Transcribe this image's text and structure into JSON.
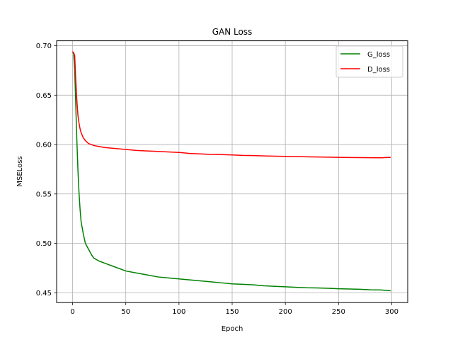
{
  "chart_data": {
    "type": "line",
    "title": "GAN Loss",
    "xlabel": "Epoch",
    "ylabel": "MSELoss",
    "xlim": [
      -15,
      315
    ],
    "ylim": [
      0.44,
      0.705
    ],
    "xticks": [
      0,
      50,
      100,
      150,
      200,
      250,
      300
    ],
    "yticks": [
      0.45,
      0.5,
      0.55,
      0.6,
      0.65,
      0.7
    ],
    "grid": true,
    "legend_position": "top-right",
    "series": [
      {
        "name": "G_loss",
        "color": "#008000",
        "points": [
          [
            0,
            0.694
          ],
          [
            1,
            0.692
          ],
          [
            2,
            0.675
          ],
          [
            3,
            0.64
          ],
          [
            4,
            0.605
          ],
          [
            5,
            0.575
          ],
          [
            6,
            0.552
          ],
          [
            7,
            0.535
          ],
          [
            8,
            0.522
          ],
          [
            10,
            0.51
          ],
          [
            12,
            0.5
          ],
          [
            15,
            0.494
          ],
          [
            18,
            0.488
          ],
          [
            20,
            0.485
          ],
          [
            25,
            0.482
          ],
          [
            30,
            0.48
          ],
          [
            40,
            0.476
          ],
          [
            50,
            0.472
          ],
          [
            60,
            0.47
          ],
          [
            70,
            0.468
          ],
          [
            80,
            0.466
          ],
          [
            90,
            0.465
          ],
          [
            100,
            0.464
          ],
          [
            110,
            0.463
          ],
          [
            120,
            0.462
          ],
          [
            130,
            0.461
          ],
          [
            140,
            0.46
          ],
          [
            150,
            0.459
          ],
          [
            160,
            0.4585
          ],
          [
            170,
            0.458
          ],
          [
            180,
            0.457
          ],
          [
            190,
            0.4565
          ],
          [
            200,
            0.456
          ],
          [
            210,
            0.4555
          ],
          [
            220,
            0.455
          ],
          [
            230,
            0.4548
          ],
          [
            240,
            0.4545
          ],
          [
            250,
            0.454
          ],
          [
            260,
            0.4538
          ],
          [
            270,
            0.4535
          ],
          [
            280,
            0.453
          ],
          [
            290,
            0.4528
          ],
          [
            299,
            0.452
          ]
        ]
      },
      {
        "name": "D_loss",
        "color": "#ff0000",
        "points": [
          [
            0,
            0.694
          ],
          [
            1,
            0.693
          ],
          [
            2,
            0.69
          ],
          [
            3,
            0.665
          ],
          [
            4,
            0.645
          ],
          [
            5,
            0.63
          ],
          [
            6,
            0.622
          ],
          [
            7,
            0.616
          ],
          [
            8,
            0.612
          ],
          [
            10,
            0.607
          ],
          [
            12,
            0.604
          ],
          [
            15,
            0.601
          ],
          [
            20,
            0.599
          ],
          [
            25,
            0.598
          ],
          [
            30,
            0.597
          ],
          [
            40,
            0.596
          ],
          [
            50,
            0.595
          ],
          [
            60,
            0.594
          ],
          [
            70,
            0.5935
          ],
          [
            80,
            0.593
          ],
          [
            90,
            0.5925
          ],
          [
            100,
            0.592
          ],
          [
            110,
            0.591
          ],
          [
            120,
            0.5905
          ],
          [
            130,
            0.59
          ],
          [
            140,
            0.5898
          ],
          [
            150,
            0.5895
          ],
          [
            160,
            0.589
          ],
          [
            170,
            0.5888
          ],
          [
            180,
            0.5885
          ],
          [
            190,
            0.5882
          ],
          [
            200,
            0.588
          ],
          [
            210,
            0.5878
          ],
          [
            220,
            0.5876
          ],
          [
            230,
            0.5874
          ],
          [
            240,
            0.5872
          ],
          [
            250,
            0.587
          ],
          [
            260,
            0.5869
          ],
          [
            270,
            0.5868
          ],
          [
            280,
            0.5867
          ],
          [
            290,
            0.5866
          ],
          [
            299,
            0.587
          ]
        ]
      }
    ]
  }
}
